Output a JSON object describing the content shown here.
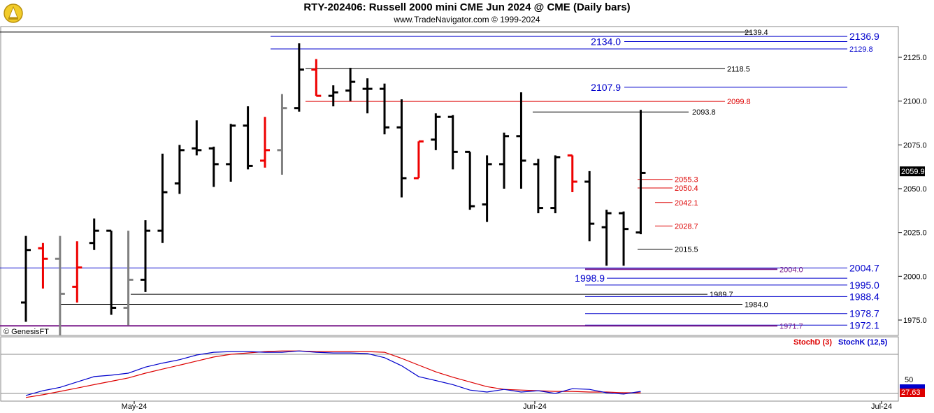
{
  "header": {
    "title": "RTY-202406:  Russell 2000 mini CME Jun 2024 @ CME  (Daily bars)",
    "subtitle": "www.TradeNavigator.com © 1999-2024"
  },
  "copyright": "© GenesisFT",
  "colors": {
    "up": "#000000",
    "down": "#ee0000",
    "gap": "#808080",
    "blue": "#0000cc",
    "red": "#dd0000",
    "purple": "#7a1a8a"
  },
  "chart_data": [
    {
      "type": "ohlc",
      "title": "",
      "ylim": [
        1966,
        2145
      ],
      "yticks": [
        1975.0,
        2000.0,
        2025.0,
        2050.0,
        2075.0,
        2100.0,
        2125.0
      ],
      "ytick_labels": [
        "1975.0",
        "2000.0",
        "2025.0",
        "2050.0",
        "2075.0",
        "2100.0",
        "2125.0"
      ],
      "last_price_label": "2059.9",
      "xtick_labels": [
        "May-24",
        "Jun-24",
        "Jul-24"
      ],
      "bars": [
        {
          "o": 1985,
          "h": 2023,
          "l": 1974,
          "c": 2015,
          "col": "up"
        },
        {
          "o": 2016,
          "h": 2019,
          "l": 1993,
          "c": 2010,
          "col": "down"
        },
        {
          "o": 2010,
          "h": 2023,
          "l": 1966,
          "c": 1990,
          "col": "gap"
        },
        {
          "o": 1994,
          "h": 2020,
          "l": 1985,
          "c": 2005,
          "col": "down"
        },
        {
          "o": 2019,
          "h": 2033,
          "l": 2015,
          "c": 2026,
          "col": "up"
        },
        {
          "o": 2026,
          "h": 2026,
          "l": 1978,
          "c": 1982,
          "col": "up"
        },
        {
          "o": 1982,
          "h": 2026,
          "l": 1972,
          "c": 1998,
          "col": "gap"
        },
        {
          "o": 1998,
          "h": 2032,
          "l": 1991,
          "c": 2026,
          "col": "up"
        },
        {
          "o": 2026,
          "h": 2070,
          "l": 2019,
          "c": 2048,
          "col": "up"
        },
        {
          "o": 2053,
          "h": 2075,
          "l": 2047,
          "c": 2072,
          "col": "up"
        },
        {
          "o": 2073,
          "h": 2089,
          "l": 2069,
          "c": 2072,
          "col": "up"
        },
        {
          "o": 2073,
          "h": 2074,
          "l": 2051,
          "c": 2064,
          "col": "up"
        },
        {
          "o": 2064,
          "h": 2087,
          "l": 2054,
          "c": 2086,
          "col": "up"
        },
        {
          "o": 2086,
          "h": 2097,
          "l": 2061,
          "c": 2063,
          "col": "up"
        },
        {
          "o": 2066,
          "h": 2091,
          "l": 2062,
          "c": 2072,
          "col": "down"
        },
        {
          "o": 2072,
          "h": 2104,
          "l": 2058,
          "c": 2096,
          "col": "gap"
        },
        {
          "o": 2096,
          "h": 2133,
          "l": 2094,
          "c": 2118,
          "col": "up"
        },
        {
          "o": 2118,
          "h": 2124,
          "l": 2103,
          "c": 2103,
          "col": "down"
        },
        {
          "o": 2103,
          "h": 2109,
          "l": 2097,
          "c": 2105,
          "col": "up"
        },
        {
          "o": 2106,
          "h": 2119,
          "l": 2100,
          "c": 2111,
          "col": "up"
        },
        {
          "o": 2107,
          "h": 2113,
          "l": 2093,
          "c": 2107,
          "col": "up"
        },
        {
          "o": 2107,
          "h": 2110,
          "l": 2081,
          "c": 2085,
          "col": "up"
        },
        {
          "o": 2085,
          "h": 2101,
          "l": 2045,
          "c": 2056,
          "col": "up"
        },
        {
          "o": 2056,
          "h": 2077,
          "l": 2056,
          "c": 2077,
          "col": "down"
        },
        {
          "o": 2078,
          "h": 2093,
          "l": 2072,
          "c": 2091,
          "col": "up"
        },
        {
          "o": 2091,
          "h": 2092,
          "l": 2061,
          "c": 2071,
          "col": "up"
        },
        {
          "o": 2071,
          "h": 2071,
          "l": 2038,
          "c": 2040,
          "col": "up"
        },
        {
          "o": 2041,
          "h": 2069,
          "l": 2031,
          "c": 2064,
          "col": "up"
        },
        {
          "o": 2064,
          "h": 2082,
          "l": 2050,
          "c": 2080,
          "col": "up"
        },
        {
          "o": 2080,
          "h": 2105,
          "l": 2050,
          "c": 2066,
          "col": "up"
        },
        {
          "o": 2064,
          "h": 2067,
          "l": 2036,
          "c": 2039,
          "col": "up"
        },
        {
          "o": 2039,
          "h": 2069,
          "l": 2036,
          "c": 2068,
          "col": "up"
        },
        {
          "o": 2069,
          "h": 2069,
          "l": 2048,
          "c": 2054,
          "col": "down"
        },
        {
          "o": 2054,
          "h": 2060,
          "l": 2020,
          "c": 2030,
          "col": "up"
        },
        {
          "o": 2028,
          "h": 2038,
          "l": 2006,
          "c": 2036,
          "col": "up"
        },
        {
          "o": 2036,
          "h": 2037,
          "l": 2006,
          "c": 2027,
          "col": "up"
        },
        {
          "o": 2025,
          "h": 2095,
          "l": 2024,
          "c": 2059,
          "col": "up"
        }
      ]
    },
    {
      "type": "line",
      "title": "",
      "ylim": [
        0,
        100
      ],
      "yticks": [
        50
      ],
      "ytick_labels": [
        "50"
      ],
      "last_value_label": "27.63",
      "series": [
        {
          "name": "StochD (3)",
          "color": "#dd0000",
          "values": [
            22,
            26,
            31,
            36,
            41,
            46,
            51,
            58,
            64,
            70,
            76,
            82,
            86,
            88,
            90,
            91,
            91,
            90,
            90,
            90,
            90,
            89,
            80,
            70,
            60,
            52,
            45,
            38,
            34,
            33,
            32,
            31,
            31,
            30,
            30,
            29,
            29
          ]
        },
        {
          "name": "StochK (12,5)",
          "color": "#0000cc",
          "values": [
            25,
            32,
            37,
            45,
            53,
            55,
            58,
            67,
            73,
            78,
            85,
            89,
            90,
            90,
            89,
            89,
            91,
            89,
            88,
            88,
            87,
            81,
            69,
            53,
            47,
            41,
            33,
            30,
            34,
            30,
            32,
            28,
            35,
            34,
            29,
            27,
            31
          ]
        }
      ]
    }
  ],
  "levels": [
    {
      "value": 2139.4,
      "label": "2139.4",
      "color": "black",
      "big": false
    },
    {
      "value": 2136.9,
      "label": "2136.9",
      "color": "blue",
      "big": true
    },
    {
      "value": 2134.0,
      "label": "2134.0",
      "color": "blue",
      "big": true
    },
    {
      "value": 2129.8,
      "label": "2129.8",
      "color": "blue",
      "big": false
    },
    {
      "value": 2118.5,
      "label": "2118.5",
      "color": "black",
      "big": false
    },
    {
      "value": 2107.9,
      "label": "2107.9",
      "color": "blue",
      "big": true
    },
    {
      "value": 2099.8,
      "label": "2099.8",
      "color": "red",
      "big": false
    },
    {
      "value": 2093.8,
      "label": "2093.8",
      "color": "black",
      "big": false
    },
    {
      "value": 2055.3,
      "label": "2055.3",
      "color": "red",
      "big": false
    },
    {
      "value": 2050.4,
      "label": "2050.4",
      "color": "red",
      "big": false
    },
    {
      "value": 2042.1,
      "label": "2042.1",
      "color": "red",
      "big": false
    },
    {
      "value": 2028.7,
      "label": "2028.7",
      "color": "red",
      "big": false
    },
    {
      "value": 2015.5,
      "label": "2015.5",
      "color": "black",
      "big": false
    },
    {
      "value": 2004.7,
      "label": "2004.7",
      "color": "blue",
      "big": true
    },
    {
      "value": 2004.0,
      "label": "2004.0",
      "color": "purple",
      "big": false
    },
    {
      "value": 1998.9,
      "label": "1998.9",
      "color": "blue",
      "big": true
    },
    {
      "value": 1995.0,
      "label": "1995.0",
      "color": "blue",
      "big": true
    },
    {
      "value": 1989.7,
      "label": "1989.7",
      "color": "black",
      "big": false
    },
    {
      "value": 1988.4,
      "label": "1988.4",
      "color": "blue",
      "big": true
    },
    {
      "value": 1984.0,
      "label": "1984.0",
      "color": "black",
      "big": false
    },
    {
      "value": 1978.7,
      "label": "1978.7",
      "color": "blue",
      "big": true
    },
    {
      "value": 1972.1,
      "label": "1972.1",
      "color": "blue",
      "big": true
    },
    {
      "value": 1971.7,
      "label": "1971.7",
      "color": "purple",
      "big": false
    }
  ]
}
